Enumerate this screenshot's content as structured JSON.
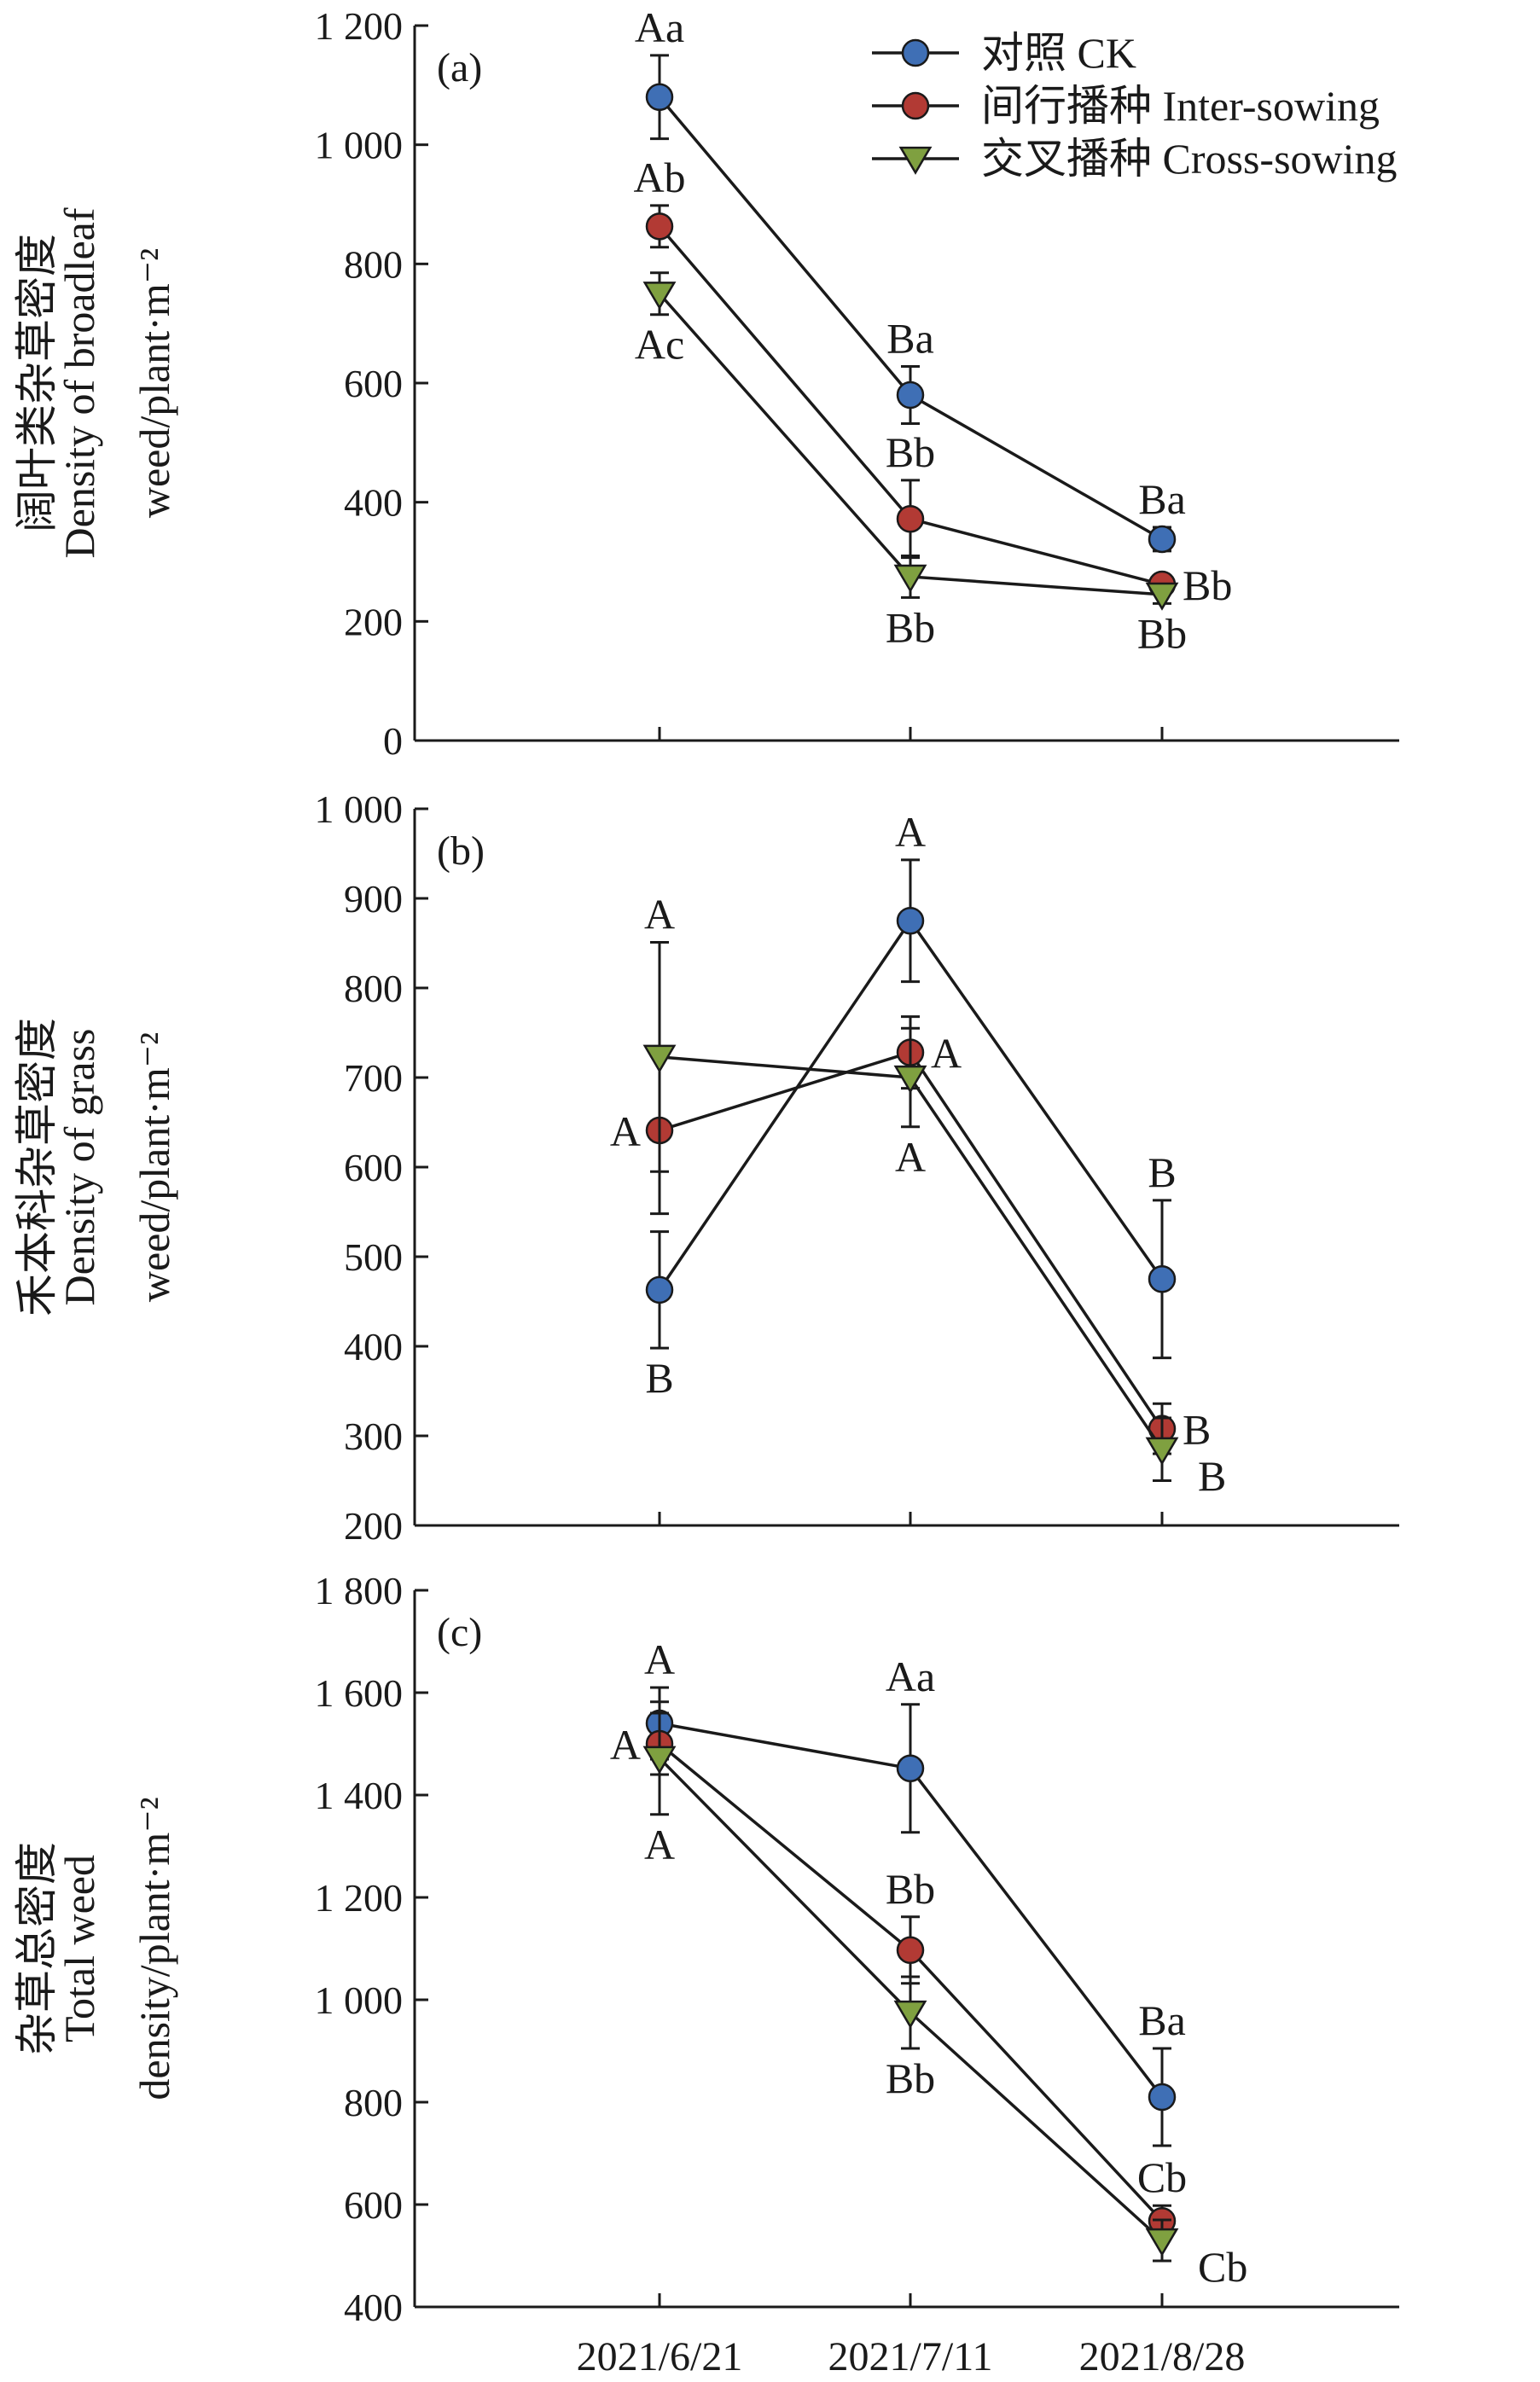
{
  "legend": {
    "placement": "top-right of panel (a)",
    "entries": [
      {
        "label": "对照  CK",
        "color": "#3f6fb5",
        "marker": "circle"
      },
      {
        "label": "间行播种 Inter-sowing",
        "color": "#b23a34",
        "marker": "circle"
      },
      {
        "label": "交叉播种 Cross-sowing",
        "color": "#7fa040",
        "marker": "triangle-down"
      }
    ]
  },
  "x_tick_labels": [
    "2021/6/21",
    "2021/7/11",
    "2021/8/28"
  ],
  "chart_data": [
    {
      "type": "line",
      "panel_label": "(a)",
      "ylabel_lines": [
        "阔叶类杂草密度",
        "Density of broadleaf",
        "weed/plant·m⁻²"
      ],
      "ylim": [
        0,
        1200
      ],
      "yticks": [
        0,
        200,
        400,
        600,
        800,
        1000,
        1200
      ],
      "ytick_labels": [
        "0",
        "200",
        "400",
        "600",
        "800",
        "1 000",
        "1 200"
      ],
      "categories": [
        "2021/6/21",
        "2021/7/11",
        "2021/8/28"
      ],
      "grid": false,
      "series": [
        {
          "name": "对照  CK",
          "values": [
            1080,
            580,
            338
          ],
          "errors": [
            70,
            48,
            20
          ],
          "labels": [
            "Aa",
            "Ba",
            "Ba"
          ],
          "label_pos": [
            "above",
            "above",
            "above"
          ]
        },
        {
          "name": "间行播种 Inter-sowing",
          "values": [
            863,
            372,
            262
          ],
          "errors": [
            35,
            65,
            15
          ],
          "labels": [
            "Ab",
            "Bb",
            "Bb"
          ],
          "label_pos": [
            "above",
            "above",
            "right"
          ]
        },
        {
          "name": "交叉播种 Cross-sowing",
          "values": [
            750,
            275,
            245
          ],
          "errors": [
            35,
            35,
            15
          ],
          "labels": [
            "Ac",
            "Bb",
            "Bb"
          ],
          "label_pos": [
            "below",
            "below",
            "below"
          ]
        }
      ]
    },
    {
      "type": "line",
      "panel_label": "(b)",
      "ylabel_lines": [
        "禾本科杂草密度",
        "Density of grass",
        "weed/plant·m⁻²"
      ],
      "ylim": [
        200,
        1000
      ],
      "yticks": [
        200,
        300,
        400,
        500,
        600,
        700,
        800,
        900,
        1000
      ],
      "ytick_labels": [
        "200",
        "300",
        "400",
        "500",
        "600",
        "700",
        "800",
        "900",
        "1 000"
      ],
      "categories": [
        "2021/6/21",
        "2021/7/11",
        "2021/8/28"
      ],
      "grid": false,
      "series": [
        {
          "name": "对照  CK",
          "values": [
            463,
            875,
            475
          ],
          "errors": [
            65,
            68,
            88
          ],
          "labels": [
            "B",
            "A",
            "B"
          ],
          "label_pos": [
            "below",
            "above",
            "above"
          ]
        },
        {
          "name": "间行播种 Inter-sowing",
          "values": [
            641,
            728,
            308
          ],
          "errors": [
            93,
            40,
            28
          ],
          "labels": [
            "A",
            "A",
            "B"
          ],
          "label_pos": [
            "left",
            "right",
            "right"
          ]
        },
        {
          "name": "交叉播种 Cross-sowing",
          "values": [
            723,
            700,
            285
          ],
          "errors": [
            128,
            55,
            35
          ],
          "labels": [
            "A",
            "A",
            "B"
          ],
          "label_pos": [
            "above",
            "below",
            "right-below"
          ]
        }
      ]
    },
    {
      "type": "line",
      "panel_label": "(c)",
      "ylabel_lines": [
        "杂草总密度",
        "Total weed",
        "density/plant·m⁻²"
      ],
      "ylim": [
        400,
        1800
      ],
      "yticks": [
        400,
        600,
        800,
        1000,
        1200,
        1400,
        1600,
        1800
      ],
      "ytick_labels": [
        "400",
        "600",
        "800",
        "1 000",
        "1 200",
        "1 400",
        "1 600",
        "1 800"
      ],
      "categories": [
        "2021/6/21",
        "2021/7/11",
        "2021/8/28"
      ],
      "grid": false,
      "series": [
        {
          "name": "对照  CK",
          "values": [
            1540,
            1452,
            810
          ],
          "errors": [
            70,
            125,
            95
          ],
          "labels": [
            "A",
            "Aa",
            "Ba"
          ],
          "label_pos": [
            "above",
            "above",
            "above"
          ]
        },
        {
          "name": "间行播种 Inter-sowing",
          "values": [
            1500,
            1097,
            568
          ],
          "errors": [
            60,
            65,
            30
          ],
          "labels": [
            "A",
            "Bb",
            "Cb"
          ],
          "label_pos": [
            "left",
            "above",
            "above"
          ]
        },
        {
          "name": "交叉播种 Cross-sowing",
          "values": [
            1472,
            975,
            530
          ],
          "errors": [
            110,
            70,
            40
          ],
          "labels": [
            "A",
            "Bb",
            "Cb"
          ],
          "label_pos": [
            "below",
            "below",
            "right-below"
          ]
        }
      ]
    }
  ]
}
